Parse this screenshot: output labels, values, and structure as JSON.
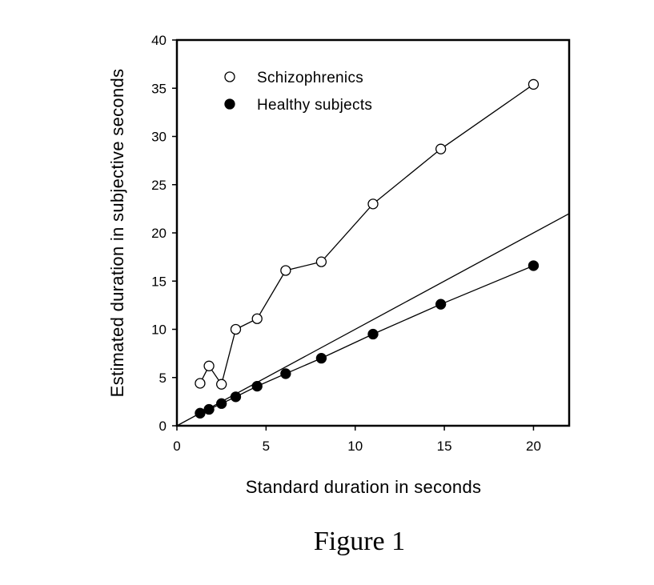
{
  "chart_data": {
    "type": "scatter",
    "xlabel": "Standard duration in seconds",
    "ylabel": "Estimated duration in subjective seconds",
    "xlim": [
      0,
      22
    ],
    "ylim": [
      0,
      40
    ],
    "x_ticks": [
      0,
      5,
      10,
      15,
      20
    ],
    "y_ticks": [
      0,
      5,
      10,
      15,
      20,
      25,
      30,
      35,
      40
    ],
    "grid": false,
    "legend_position": "top-left",
    "series": [
      {
        "name": "Schizophrenics",
        "marker": "open-circle",
        "connected": true,
        "x": [
          1.3,
          1.8,
          2.5,
          3.3,
          4.5,
          6.1,
          8.1,
          11.0,
          14.8,
          20.0
        ],
        "y": [
          4.4,
          6.2,
          4.3,
          10.0,
          11.1,
          16.1,
          17.0,
          23.0,
          28.7,
          35.4
        ]
      },
      {
        "name": "Healthy subjects",
        "marker": "filled-circle",
        "connected": true,
        "x": [
          1.3,
          1.8,
          2.5,
          3.3,
          4.5,
          6.1,
          8.1,
          11.0,
          14.8,
          20.0
        ],
        "y": [
          1.3,
          1.7,
          2.3,
          3.0,
          4.1,
          5.4,
          7.0,
          9.5,
          12.6,
          16.6
        ]
      }
    ],
    "reference_line": {
      "type": "identity",
      "x": [
        0,
        22
      ],
      "y": [
        0,
        22
      ]
    }
  },
  "caption": "Figure 1"
}
